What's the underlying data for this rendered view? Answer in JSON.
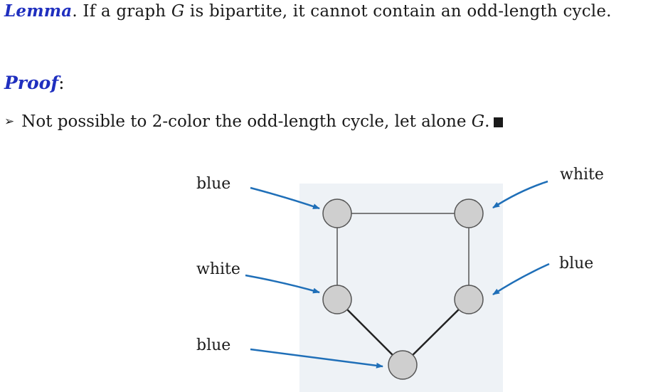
{
  "lemma": {
    "keyword": "Lemma",
    "text_before_var": ". If a graph ",
    "var": "G",
    "text_after_var": " is bipartite, it cannot contain an odd-length cycle."
  },
  "proof": {
    "keyword": "Proof",
    "colon": ":"
  },
  "bullet": {
    "marker": "➢",
    "text": "Not possible to 2-color the odd-length cycle, let alone ",
    "var": "G",
    "period": "."
  },
  "diagram": {
    "background": "#eef2f6",
    "node_fill": "#cfcfcf",
    "node_stroke": "#555555",
    "arrow_color": "#1f6fb8",
    "nodes": [
      {
        "id": "top-left",
        "color_label": "blue"
      },
      {
        "id": "top-right",
        "color_label": "white"
      },
      {
        "id": "mid-left",
        "color_label": "white"
      },
      {
        "id": "mid-right",
        "color_label": "blue"
      },
      {
        "id": "bottom",
        "color_label": "blue"
      }
    ],
    "edges": [
      [
        "top-left",
        "top-right"
      ],
      [
        "top-left",
        "mid-left"
      ],
      [
        "top-right",
        "mid-right"
      ],
      [
        "mid-left",
        "bottom"
      ],
      [
        "mid-right",
        "bottom"
      ]
    ]
  }
}
